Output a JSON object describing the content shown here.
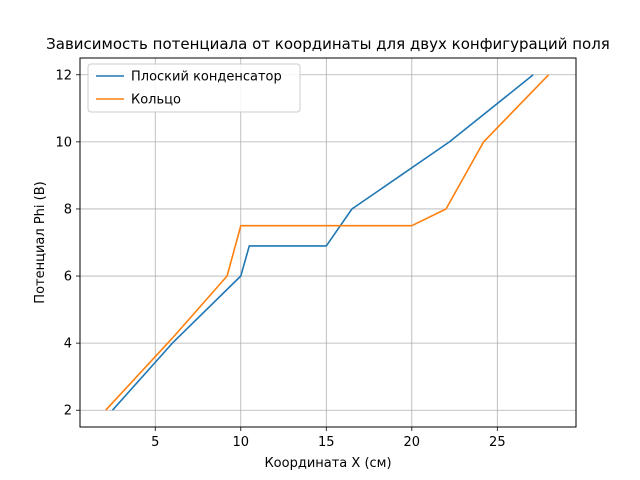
{
  "chart_data": {
    "type": "line",
    "title": "Зависимость потенциала от координаты для двух конфигураций поля",
    "xlabel": "Координата X (см)",
    "ylabel": "Потенциал Phi (В)",
    "xlim": [
      0.6,
      29.6
    ],
    "ylim": [
      1.5,
      12.5
    ],
    "xticks": [
      5,
      10,
      15,
      20,
      25
    ],
    "yticks": [
      2,
      4,
      6,
      8,
      10,
      12
    ],
    "grid": true,
    "legend_position": "top-left",
    "series": [
      {
        "name": "Плоский конденсатор",
        "color": "#1f77b4",
        "points": [
          [
            2.5,
            2.0
          ],
          [
            6.0,
            4.0
          ],
          [
            10.0,
            6.0
          ],
          [
            10.5,
            6.9
          ],
          [
            15.0,
            6.9
          ],
          [
            16.5,
            8.0
          ],
          [
            22.2,
            10.0
          ],
          [
            27.1,
            12.0
          ]
        ]
      },
      {
        "name": "Кольцо",
        "color": "#ff7f0e",
        "points": [
          [
            2.1,
            2.0
          ],
          [
            6.0,
            4.15
          ],
          [
            9.2,
            6.0
          ],
          [
            10.0,
            7.5
          ],
          [
            20.0,
            7.5
          ],
          [
            22.0,
            8.0
          ],
          [
            24.2,
            10.0
          ],
          [
            28.0,
            12.0
          ]
        ]
      }
    ]
  }
}
